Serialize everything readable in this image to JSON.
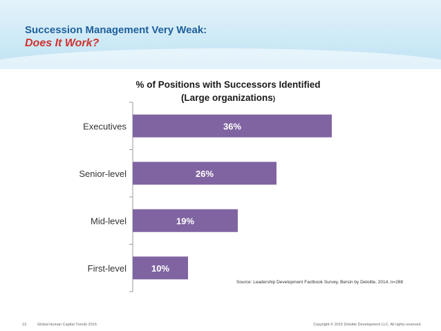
{
  "slide": {
    "title_line1": "Succession Management Very Weak:",
    "title_line2": "Does It Work?"
  },
  "chart_data": {
    "type": "bar",
    "orientation": "horizontal",
    "title_line1": "% of Positions with Successors Identified",
    "title_line2": "(Large organizations",
    "title_line2_end": ")",
    "categories": [
      "Executives",
      "Senior-level",
      "Mid-level",
      "First-level"
    ],
    "values": [
      36,
      26,
      19,
      10
    ],
    "value_labels": [
      "36%",
      "26%",
      "19%",
      "10%"
    ],
    "xlim": [
      0,
      50
    ],
    "bar_color": "#8064a2",
    "grid": false,
    "legend": "none"
  },
  "source": "Source: Leadership Development Factbook Survey, Bersin by Deloitte, 2014, n=288",
  "footer": {
    "page_number": "13",
    "publication": "Global Human Capital Trends 2015",
    "copyright": "Copyright © 2015 Deloitte Development LLC. All rights reserved."
  }
}
